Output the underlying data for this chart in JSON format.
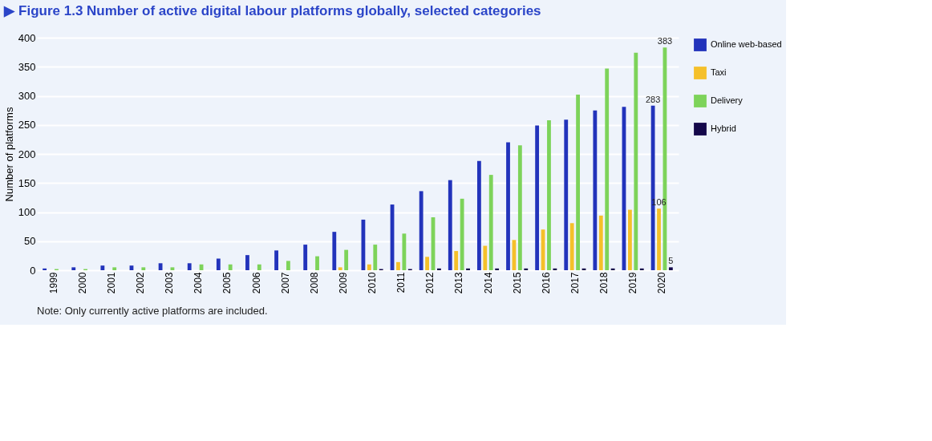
{
  "chart_data": {
    "type": "bar",
    "title": "▶ Figure 1.3  Number of active digital labour platforms globally, selected categories",
    "ylabel": "Number of platforms",
    "categories": [
      "1999",
      "2000",
      "2001",
      "2002",
      "2003",
      "2004",
      "2005",
      "2006",
      "2007",
      "2008",
      "2009",
      "2010",
      "2011",
      "2012",
      "2013",
      "2014",
      "2015",
      "2016",
      "2017",
      "2018",
      "2019",
      "2020"
    ],
    "series": [
      {
        "name": "Online web-based",
        "color": "#2233bb",
        "values": [
          3,
          5,
          8,
          8,
          12,
          12,
          20,
          26,
          34,
          44,
          66,
          87,
          113,
          136,
          155,
          188,
          220,
          249,
          259,
          275,
          281,
          283
        ],
        "value_labels": [
          null,
          null,
          null,
          null,
          null,
          null,
          null,
          null,
          null,
          null,
          null,
          null,
          null,
          null,
          null,
          null,
          null,
          null,
          null,
          null,
          null,
          "283"
        ]
      },
      {
        "name": "Taxi",
        "color": "#f5c02a",
        "values": [
          0,
          0,
          0,
          0,
          0,
          0,
          0,
          0,
          0,
          0,
          5,
          10,
          14,
          23,
          33,
          42,
          52,
          70,
          81,
          94,
          104,
          106
        ],
        "value_labels": [
          null,
          null,
          null,
          null,
          null,
          null,
          null,
          null,
          null,
          null,
          null,
          null,
          null,
          null,
          null,
          null,
          null,
          null,
          null,
          null,
          null,
          "106"
        ]
      },
      {
        "name": "Delivery",
        "color": "#7dd35a",
        "values": [
          2,
          2,
          5,
          5,
          5,
          10,
          10,
          10,
          16,
          24,
          35,
          44,
          63,
          91,
          123,
          164,
          215,
          258,
          302,
          347,
          374,
          383
        ],
        "value_labels": [
          null,
          null,
          null,
          null,
          null,
          null,
          null,
          null,
          null,
          null,
          null,
          null,
          null,
          null,
          null,
          null,
          null,
          null,
          null,
          null,
          null,
          "383"
        ]
      },
      {
        "name": "Hybrid",
        "color": "#14084a",
        "values": [
          0,
          0,
          0,
          0,
          0,
          0,
          0,
          0,
          0,
          0,
          0,
          2,
          2,
          3,
          3,
          3,
          3,
          3,
          3,
          3,
          3,
          5
        ],
        "value_labels": [
          null,
          null,
          null,
          null,
          null,
          null,
          null,
          null,
          null,
          null,
          null,
          null,
          null,
          null,
          null,
          null,
          null,
          null,
          null,
          null,
          null,
          "5"
        ]
      }
    ],
    "ylim": [
      0,
      400
    ],
    "yticks": [
      0,
      50,
      100,
      150,
      200,
      250,
      300,
      350,
      400
    ],
    "grid": "y",
    "legend": "right",
    "annotations": [
      "Note: Only currently active platforms are included."
    ]
  }
}
